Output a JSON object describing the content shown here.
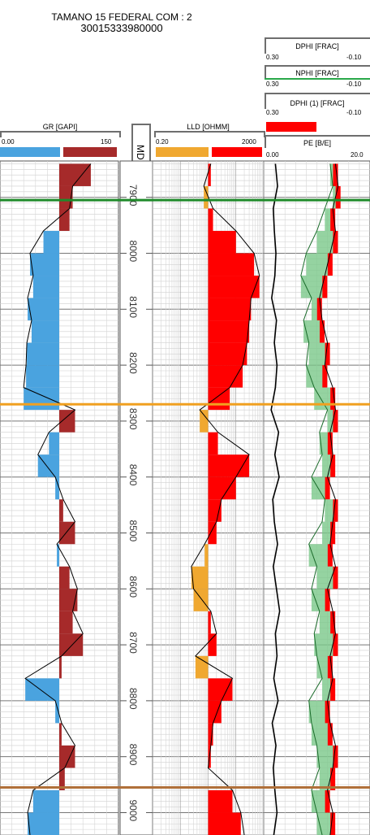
{
  "header": {
    "well_name": "TAMANO 15 FEDERAL COM : 2",
    "api": "30015333980000"
  },
  "tracks": {
    "gr": {
      "label": "GR [GAPI]",
      "min": "0.00",
      "max": "150"
    },
    "md": {
      "label": "MD"
    },
    "lld": {
      "label": "LLD [OHMM]",
      "min": "0.20",
      "max": "2000"
    },
    "dphi": {
      "label": "DPHI [FRAC]",
      "min": "0.30",
      "max": "-0.10"
    },
    "nphi": {
      "label": "NPHI [FRAC]",
      "min": "0.30",
      "max": "-0.10"
    },
    "dphi1": {
      "label": "DPHI (1) [FRAC]",
      "min": "0.30",
      "max": "-0.10"
    },
    "pe": {
      "label": "PE [B/E]",
      "min": "0.00",
      "max": "20.0"
    }
  },
  "colors": {
    "gr_low": "#4aa3df",
    "gr_high": "#a62a2a",
    "lld_low": "#f0a830",
    "lld_high": "#ff0000",
    "nphi": "#2aa84a",
    "dphi_fill": "#7bc88a",
    "top_green": "#1f8a2a",
    "top_orange": "#f0a020",
    "top_brown": "#b0703a"
  },
  "chart_data": {
    "type": "line",
    "depth_range": [
      7835,
      9040
    ],
    "depth_ticks": [
      "7900",
      "8000",
      "8100",
      "8200",
      "8300",
      "8400",
      "8500",
      "8600",
      "8700",
      "8800",
      "8900",
      "9000"
    ],
    "formation_tops_md": [
      7905,
      8270,
      8955
    ],
    "series": [
      {
        "name": "GR",
        "unit": "GAPI",
        "range": [
          0,
          150
        ],
        "cutoff": 75,
        "md": [
          7840,
          7880,
          7920,
          7960,
          8000,
          8040,
          8080,
          8120,
          8160,
          8200,
          8240,
          8280,
          8320,
          8360,
          8400,
          8440,
          8480,
          8520,
          8560,
          8600,
          8640,
          8680,
          8720,
          8760,
          8800,
          8840,
          8880,
          8920,
          8960,
          9000,
          9040
        ],
        "values": [
          115,
          92,
          88,
          55,
          38,
          42,
          35,
          40,
          34,
          33,
          30,
          95,
          62,
          48,
          70,
          80,
          95,
          72,
          88,
          98,
          92,
          105,
          78,
          32,
          70,
          78,
          95,
          82,
          42,
          35,
          38
        ]
      },
      {
        "name": "LLD",
        "unit": "OHMM",
        "range": [
          0.2,
          2000
        ],
        "log": true,
        "cutoff": 20,
        "md": [
          7840,
          7880,
          7920,
          7960,
          8000,
          8040,
          8080,
          8120,
          8160,
          8200,
          8240,
          8280,
          8320,
          8360,
          8400,
          8440,
          8480,
          8520,
          8560,
          8600,
          8640,
          8680,
          8720,
          8760,
          8800,
          8840,
          8880,
          8920,
          8960,
          9000,
          9040
        ],
        "values": [
          25,
          14,
          30,
          200,
          900,
          1400,
          700,
          600,
          500,
          350,
          120,
          10,
          45,
          600,
          200,
          60,
          40,
          15,
          5,
          6,
          25,
          40,
          7,
          150,
          60,
          30,
          25,
          20,
          150,
          300,
          400
        ]
      },
      {
        "name": "PE",
        "unit": "B/E",
        "range": [
          0,
          20
        ],
        "md": [
          7840,
          7880,
          7920,
          7960,
          8000,
          8040,
          8080,
          8120,
          8160,
          8200,
          8240,
          8280,
          8320,
          8360,
          8400,
          8440,
          8480,
          8520,
          8560,
          8600,
          8640,
          8680,
          8720,
          8760,
          8800,
          8840,
          8880,
          8920,
          8960,
          9000,
          9040
        ],
        "values": [
          2.2,
          2.6,
          1.8,
          2.0,
          2.3,
          2.1,
          1.5,
          2.4,
          2.0,
          2.5,
          2.2,
          1.4,
          2.8,
          2.1,
          2.9,
          1.7,
          2.0,
          2.6,
          1.8,
          2.4,
          3.0,
          2.2,
          2.5,
          1.9,
          2.7,
          1.6,
          2.3,
          1.8,
          2.1,
          2.5,
          1.9
        ]
      },
      {
        "name": "DPHI",
        "unit": "FRAC",
        "range": [
          0.3,
          -0.1
        ],
        "md": [
          7840,
          7880,
          7920,
          7960,
          8000,
          8040,
          8080,
          8120,
          8160,
          8200,
          8240,
          8280,
          8320,
          8360,
          8400,
          8440,
          8480,
          8520,
          8560,
          8600,
          8640,
          8680,
          8720,
          8760,
          8800,
          8840,
          8880,
          8920,
          8960,
          9000,
          9040
        ],
        "values": [
          0.03,
          0.02,
          0.04,
          0.03,
          0.05,
          0.07,
          0.09,
          0.08,
          0.06,
          0.07,
          0.04,
          0.03,
          0.05,
          0.04,
          0.06,
          0.03,
          0.04,
          0.05,
          0.03,
          0.06,
          0.04,
          0.03,
          0.05,
          0.04,
          0.06,
          0.05,
          0.03,
          0.04,
          0.06,
          0.04,
          0.05
        ]
      },
      {
        "name": "NPHI",
        "unit": "FRAC",
        "range": [
          0.3,
          -0.1
        ],
        "md": [
          7840,
          7880,
          7920,
          7960,
          8000,
          8040,
          8080,
          8120,
          8160,
          8200,
          8240,
          8280,
          8320,
          8360,
          8400,
          8440,
          8480,
          8520,
          8560,
          8600,
          8640,
          8680,
          8720,
          8760,
          8800,
          8840,
          8880,
          8920,
          8960,
          9000,
          9040
        ],
        "values": [
          0.05,
          0.04,
          0.07,
          0.1,
          0.14,
          0.16,
          0.12,
          0.15,
          0.13,
          0.14,
          0.11,
          0.06,
          0.09,
          0.08,
          0.12,
          0.07,
          0.08,
          0.13,
          0.1,
          0.12,
          0.09,
          0.11,
          0.1,
          0.08,
          0.13,
          0.12,
          0.1,
          0.09,
          0.12,
          0.1,
          0.08
        ]
      }
    ]
  }
}
